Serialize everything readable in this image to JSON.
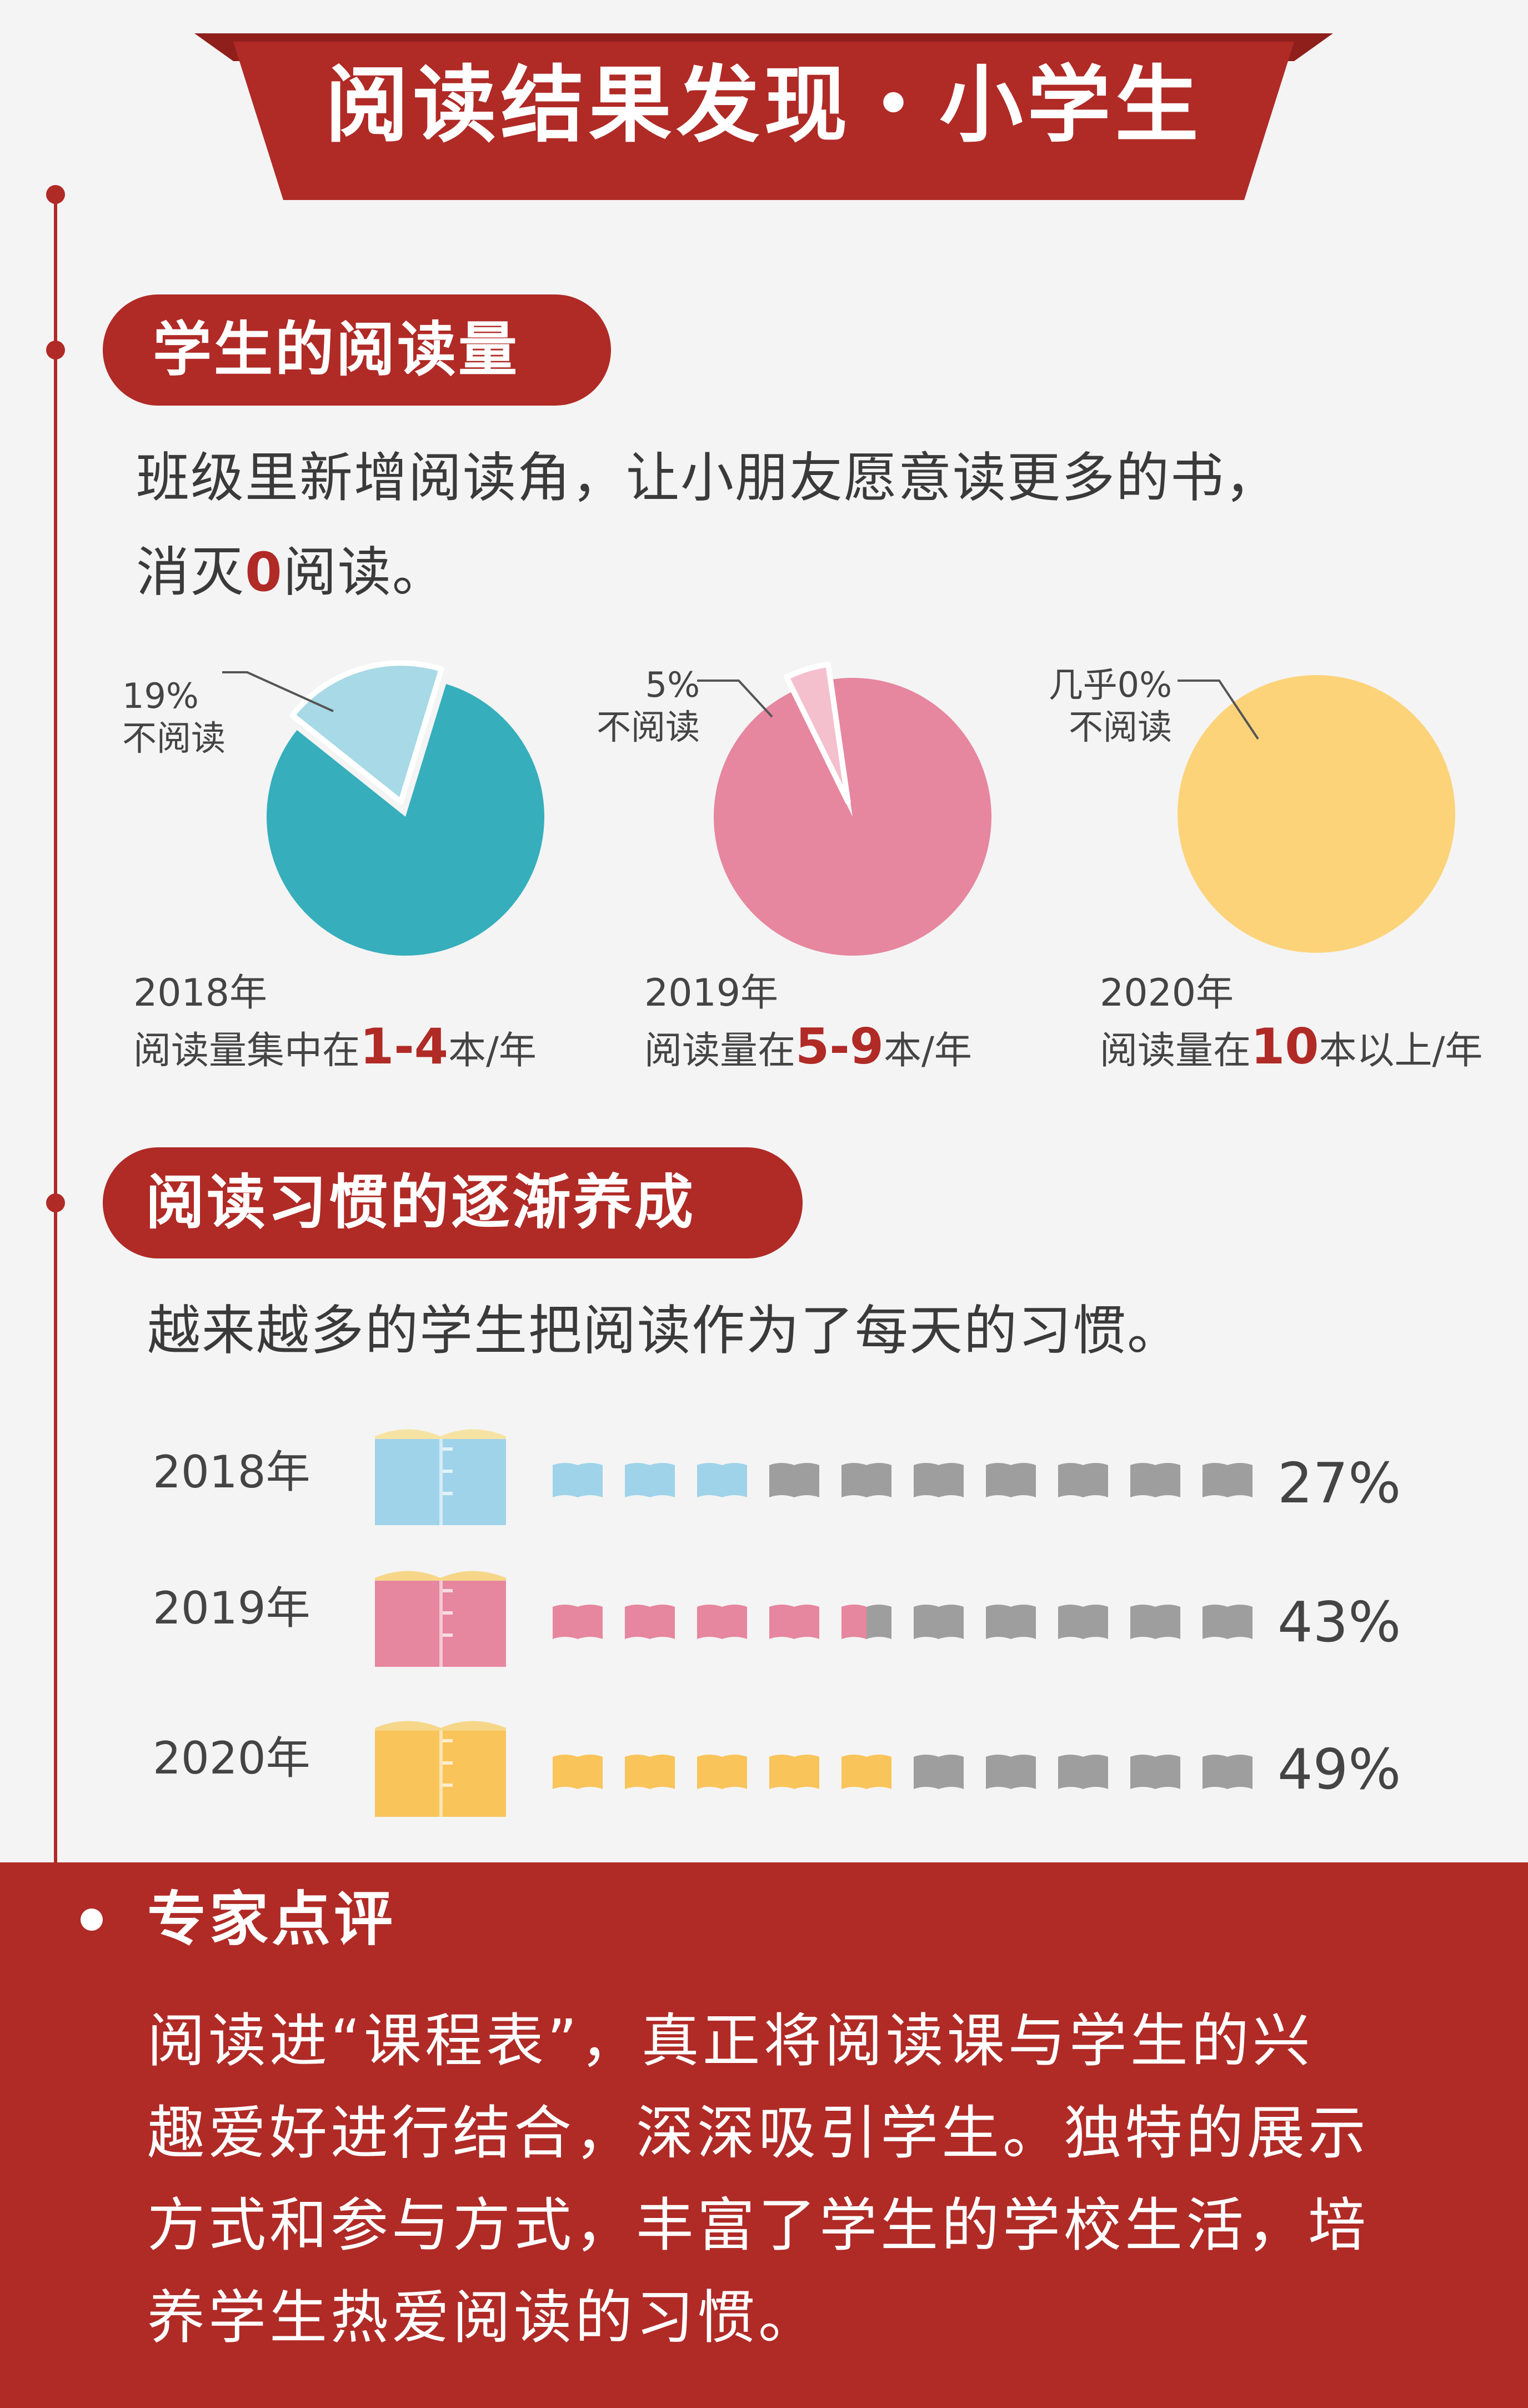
{
  "banner": {
    "title": "阅读结果发现・小学生"
  },
  "section1": {
    "title": "学生的阅读量",
    "intro_line1": "班级里新增阅读角，让小朋友愿意读更多的书，",
    "intro_line2_pre": "消灭",
    "intro_line2_num": "0",
    "intro_line2_post": "阅读。"
  },
  "section2": {
    "title": "阅读习惯的逐渐养成",
    "intro": "越来越多的学生把阅读作为了每天的习惯。"
  },
  "expert": {
    "title": "专家点评",
    "lines": [
      "阅读进“课程表”，真正将阅读课与学生的兴",
      "趣爱好进行结合，深深吸引学生。独特的展示",
      "方式和参与方式，丰富了学生的学校生活，培",
      "养学生热爱阅读的习惯。"
    ]
  },
  "colors": {
    "accent_red": "#b02a26",
    "teal": "#36aebc",
    "pink": "#e6869f",
    "yellow": "#fdd37a",
    "gray_book": "#9e9e9e",
    "book_blue": "#9fd3ea",
    "book_pink": "#e6869f",
    "book_yellow": "#f9c45a"
  },
  "chart_data": [
    {
      "type": "pie",
      "pies": [
        {
          "year": "2018年",
          "slice_pct": 19,
          "slice_label_value": "19%",
          "slice_label_text": "不阅读",
          "caption_pre": "阅读量集中在",
          "caption_range": "1-4",
          "caption_post": "本/年",
          "main_color": "#36aebc",
          "slice_color": "#a7d9e6"
        },
        {
          "year": "2019年",
          "slice_pct": 5,
          "slice_label_value": "5%",
          "slice_label_text": "不阅读",
          "caption_pre": "阅读量在",
          "caption_range": "5-9",
          "caption_post": "本/年",
          "main_color": "#e6869f",
          "slice_color": "#f4c0cd"
        },
        {
          "year": "2020年",
          "slice_pct": 0,
          "slice_label_value": "几乎0%",
          "slice_label_text": "不阅读",
          "caption_pre": "阅读量在",
          "caption_range": "10",
          "caption_post": "本以上/年",
          "main_color": "#fdd37a",
          "slice_color": "#fdd37a"
        }
      ]
    },
    {
      "type": "bar",
      "subtype": "pictogram",
      "categories": [
        "2018年",
        "2019年",
        "2020年"
      ],
      "values": [
        27,
        43,
        49
      ],
      "value_labels": [
        "27%",
        "43%",
        "49%"
      ],
      "icons_total": 10,
      "icons_filled": [
        3,
        4.5,
        5
      ],
      "icon_colors": [
        "#9fd3ea",
        "#e6869f",
        "#f9c45a"
      ]
    }
  ]
}
